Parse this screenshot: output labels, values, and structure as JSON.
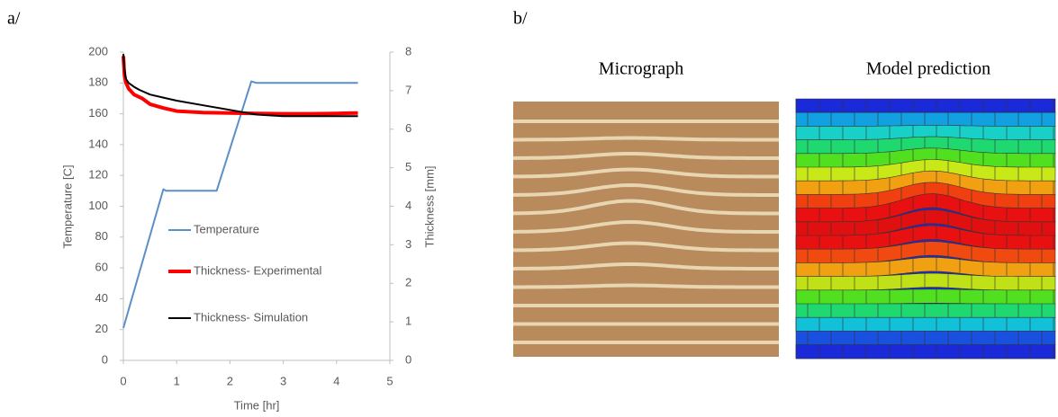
{
  "panel_a_label": "a/",
  "panel_b_label": "b/",
  "chart_data": {
    "type": "line",
    "xlabel": "Time [hr]",
    "ylabel": "Temperature [C]",
    "y2label": "Thickness [mm]",
    "xlim": [
      0,
      5
    ],
    "xticks": [
      0,
      1,
      2,
      3,
      4,
      5
    ],
    "ylim": [
      0,
      200
    ],
    "yticks": [
      0,
      20,
      40,
      60,
      80,
      100,
      120,
      140,
      160,
      180,
      200
    ],
    "y2lim": [
      0,
      8
    ],
    "y2ticks": [
      0,
      1,
      2,
      3,
      4,
      5,
      6,
      7,
      8
    ],
    "grid": false,
    "legend": "center",
    "series": [
      {
        "name": "Temperature",
        "color": "#5b8fc9",
        "axis": "y",
        "x": [
          0,
          0.75,
          0.8,
          1.75,
          2.4,
          2.5,
          4.4
        ],
        "values": [
          21,
          111,
          110,
          110,
          181,
          180,
          180
        ]
      },
      {
        "name": "Thickness- Experimental",
        "color": "#ff0000",
        "axis": "y2",
        "x": [
          0,
          0.02,
          0.05,
          0.1,
          0.2,
          0.35,
          0.5,
          0.75,
          1,
          1.5,
          2,
          2.5,
          3,
          3.5,
          4,
          4.4
        ],
        "values": [
          7.9,
          7.4,
          7.2,
          7.05,
          6.9,
          6.8,
          6.65,
          6.55,
          6.47,
          6.43,
          6.42,
          6.41,
          6.4,
          6.4,
          6.41,
          6.42
        ]
      },
      {
        "name": "Thickness- Simulation",
        "color": "#000000",
        "axis": "y2",
        "x": [
          0,
          0.02,
          0.05,
          0.1,
          0.2,
          0.3,
          0.5,
          0.75,
          1,
          1.5,
          2,
          2.5,
          3,
          3.5,
          4,
          4.4
        ],
        "values": [
          7.95,
          7.55,
          7.3,
          7.2,
          7.1,
          7.02,
          6.9,
          6.82,
          6.74,
          6.62,
          6.5,
          6.38,
          6.34,
          6.34,
          6.34,
          6.34
        ]
      }
    ]
  },
  "images": {
    "micrograph_title": "Micrograph",
    "model_title": "Model prediction"
  }
}
